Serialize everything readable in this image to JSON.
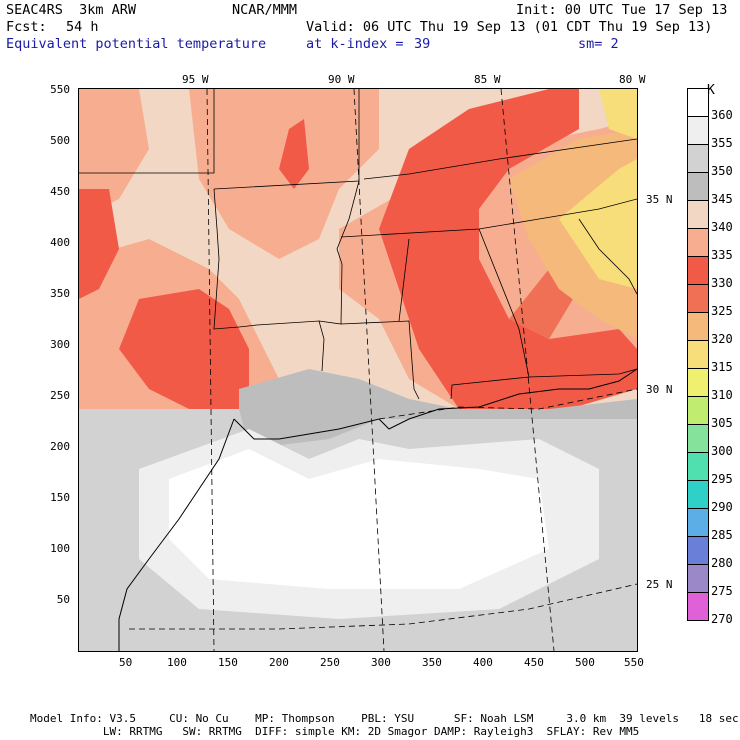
{
  "header": {
    "model": "SEAC4RS  3km ARW",
    "org": "NCAR/MMM",
    "init": "Init: 00 UTC Tue 17 Sep 13",
    "fcst_label": "Fcst:",
    "fcst_value": "54 h",
    "valid": "Valid: 06 UTC Thu 19 Sep 13 (01 CDT Thu 19 Sep 13)",
    "field": "Equivalent potential temperature",
    "level_label": "at k-index =",
    "level_value": "39",
    "smooth": "sm= 2"
  },
  "map": {
    "lon_labels": [
      "95 W",
      "90 W",
      "85 W",
      "80 W"
    ],
    "lat_labels": [
      "35 N",
      "30 N",
      "25 N"
    ],
    "x_ticks": [
      "50",
      "100",
      "150",
      "200",
      "250",
      "300",
      "350",
      "400",
      "450",
      "500",
      "550"
    ],
    "y_ticks": [
      "550",
      "500",
      "450",
      "400",
      "350",
      "300",
      "250",
      "200",
      "150",
      "100",
      "50"
    ]
  },
  "colorbar": {
    "unit": "K",
    "levels": [
      "360",
      "355",
      "350",
      "345",
      "340",
      "335",
      "330",
      "325",
      "320",
      "315",
      "310",
      "305",
      "300",
      "295",
      "290",
      "285",
      "280",
      "275",
      "270"
    ],
    "colors": [
      "#ffffff",
      "#efefef",
      "#d2d2d2",
      "#bdbdbd",
      "#f2d7c4",
      "#f7ae90",
      "#f25a48",
      "#f07055",
      "#f5b97c",
      "#f7de7a",
      "#f0f070",
      "#c0ec70",
      "#84e29a",
      "#50e0b0",
      "#2fd0c8",
      "#5cafe6",
      "#6a80d8",
      "#9a88c8",
      "#e060d8"
    ]
  },
  "footer": {
    "line1": "Model Info: V3.5     CU: No Cu    MP: Thompson    PBL: YSU      SF: Noah LSM     3.0 km  39 levels   18 sec",
    "line2": "           LW: RRTMG   SW: RRTMG  DIFF: simple KM: 2D Smagor DAMP: Rayleigh3  SFLAY: Rev MM5"
  }
}
